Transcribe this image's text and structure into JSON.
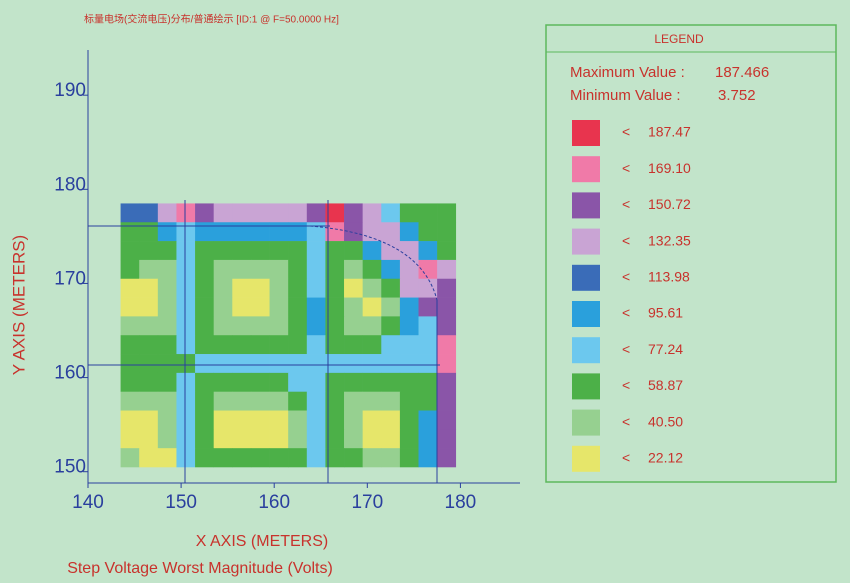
{
  "chart_data": {
    "type": "heatmap",
    "title": "标量电场(交流电压)分布/普通绘示 [ID:1 @ F=50.0000 Hz]",
    "xlabel": "X AXIS (METERS)",
    "ylabel": "Y AXIS (METERS)",
    "subtitle": "Step Voltage Worst Magnitude (Volts)",
    "xlim": [
      140,
      186.4
    ],
    "ylim": [
      148.8,
      194.8
    ],
    "xticks": [
      140,
      150,
      160,
      170,
      180
    ],
    "yticks": [
      150,
      160,
      170,
      180,
      190
    ],
    "x": [
      144.5,
      146.5,
      148.5,
      150.5,
      152.5,
      154.5,
      156.5,
      158.5,
      160.5,
      162.5,
      164.5,
      166.5,
      168.5,
      170.5,
      172.5,
      174.5,
      176.5,
      178.5
    ],
    "y": [
      177.5,
      175.5,
      173.5,
      171.5,
      169.5,
      167.5,
      165.5,
      163.5,
      161.5,
      159.5,
      157.5,
      155.5,
      153.5,
      151.5
    ],
    "z": [
      [
        113.98,
        113.98,
        132.35,
        169.1,
        150.72,
        132.35,
        132.35,
        132.35,
        132.35,
        132.35,
        150.72,
        187.47,
        150.72,
        132.35,
        77.24,
        58.87,
        58.87,
        58.87
      ],
      [
        58.87,
        58.87,
        95.61,
        77.24,
        95.61,
        95.61,
        95.61,
        95.61,
        95.61,
        95.61,
        77.24,
        169.1,
        150.72,
        132.35,
        132.35,
        95.61,
        58.87,
        58.87
      ],
      [
        58.87,
        58.87,
        58.87,
        77.24,
        58.87,
        58.87,
        58.87,
        58.87,
        58.87,
        58.87,
        77.24,
        58.87,
        58.87,
        95.61,
        132.35,
        132.35,
        95.61,
        58.87
      ],
      [
        58.87,
        40.5,
        40.5,
        77.24,
        58.87,
        40.5,
        40.5,
        40.5,
        40.5,
        58.87,
        77.24,
        58.87,
        40.5,
        58.87,
        95.61,
        132.35,
        169.1,
        132.35
      ],
      [
        22.12,
        22.12,
        40.5,
        77.24,
        58.87,
        40.5,
        22.12,
        22.12,
        40.5,
        58.87,
        77.24,
        58.87,
        22.12,
        40.5,
        58.87,
        132.35,
        132.35,
        150.72
      ],
      [
        22.12,
        22.12,
        40.5,
        77.24,
        58.87,
        40.5,
        22.12,
        22.12,
        40.5,
        58.87,
        95.61,
        58.87,
        40.5,
        22.12,
        40.5,
        95.61,
        150.72,
        150.72
      ],
      [
        40.5,
        40.5,
        40.5,
        77.24,
        58.87,
        40.5,
        40.5,
        40.5,
        40.5,
        58.87,
        95.61,
        58.87,
        40.5,
        40.5,
        58.87,
        95.61,
        77.24,
        150.72
      ],
      [
        58.87,
        58.87,
        58.87,
        77.24,
        58.87,
        58.87,
        58.87,
        58.87,
        58.87,
        58.87,
        77.24,
        58.87,
        58.87,
        58.87,
        77.24,
        77.24,
        77.24,
        169.1
      ],
      [
        58.87,
        58.87,
        58.87,
        58.87,
        77.24,
        77.24,
        77.24,
        77.24,
        77.24,
        77.24,
        77.24,
        77.24,
        77.24,
        77.24,
        77.24,
        77.24,
        77.24,
        169.1
      ],
      [
        58.87,
        58.87,
        58.87,
        77.24,
        58.87,
        58.87,
        58.87,
        58.87,
        58.87,
        77.24,
        77.24,
        58.87,
        58.87,
        58.87,
        58.87,
        58.87,
        58.87,
        150.72
      ],
      [
        40.5,
        40.5,
        40.5,
        77.24,
        58.87,
        40.5,
        40.5,
        40.5,
        40.5,
        58.87,
        77.24,
        58.87,
        40.5,
        40.5,
        40.5,
        58.87,
        58.87,
        150.72
      ],
      [
        22.12,
        22.12,
        40.5,
        77.24,
        58.87,
        22.12,
        22.12,
        22.12,
        22.12,
        40.5,
        77.24,
        58.87,
        40.5,
        22.12,
        22.12,
        58.87,
        95.61,
        150.72
      ],
      [
        22.12,
        22.12,
        40.5,
        77.24,
        58.87,
        22.12,
        22.12,
        22.12,
        22.12,
        40.5,
        77.24,
        58.87,
        40.5,
        22.12,
        22.12,
        58.87,
        95.61,
        150.72
      ],
      [
        40.5,
        22.12,
        22.12,
        77.24,
        58.87,
        58.87,
        58.87,
        58.87,
        58.87,
        58.87,
        77.24,
        58.87,
        58.87,
        40.5,
        40.5,
        58.87,
        95.61,
        150.72
      ]
    ],
    "legend": {
      "title": "LEGEND",
      "max_label": "Maximum Value :",
      "max_value": 187.466,
      "min_label": "Minimum Value :",
      "min_value": 3.752,
      "comparator": "<",
      "levels": [
        {
          "value": 187.47,
          "color": "#e8344e"
        },
        {
          "value": {
            "value": 169.1,
            "label": "169.10"
          },
          "color": "#f07aa8"
        },
        {
          "value": 150.72,
          "color": "#8a55a8"
        },
        {
          "value": 132.35,
          "color": "#c9a4d4"
        },
        {
          "value": 113.98,
          "color": "#3a6cb8"
        },
        {
          "value": 95.61,
          "color": "#2aa0dc"
        },
        {
          "value": 77.24,
          "color": "#6cc8ee"
        },
        {
          "value": 58.87,
          "color": "#4cb048"
        },
        {
          "value": {
            "value": 40.5,
            "label": "40.50"
          },
          "color": "#96d090"
        },
        {
          "value": 22.12,
          "color": "#e6e66a"
        }
      ]
    }
  }
}
